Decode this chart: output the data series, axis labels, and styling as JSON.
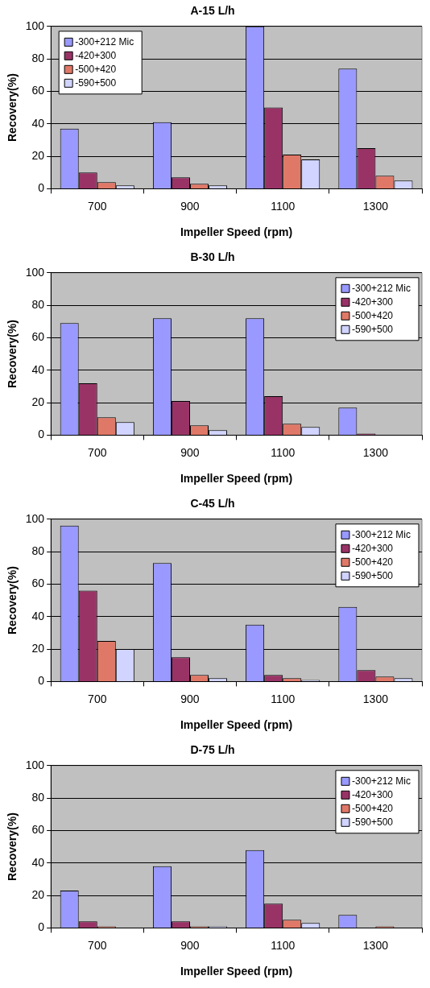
{
  "chart_data": [
    {
      "type": "bar",
      "title": "A-15 L/h",
      "xlabel": "Impeller Speed (rpm)",
      "ylabel": "Recovery(%)",
      "categories": [
        "700",
        "900",
        "1100",
        "1300"
      ],
      "ylim": [
        0,
        100
      ],
      "yticks": [
        0,
        20,
        40,
        60,
        80,
        100
      ],
      "grid": "y",
      "legend": "top left",
      "series": [
        {
          "name": "-300+212 Mic",
          "color": "#9999ff",
          "values": [
            37,
            41,
            100,
            74
          ]
        },
        {
          "name": "-420+300",
          "color": "#993366",
          "values": [
            10,
            7,
            50,
            25
          ]
        },
        {
          "name": "-500+420",
          "color": "#e07868",
          "values": [
            4,
            3,
            21,
            8
          ]
        },
        {
          "name": "-590+500",
          "color": "#d0d4ff",
          "values": [
            2,
            2,
            18,
            5
          ]
        }
      ]
    },
    {
      "type": "bar",
      "title": "B-30 L/h",
      "xlabel": "Impeller Speed (rpm)",
      "ylabel": "Recovery(%)",
      "categories": [
        "700",
        "900",
        "1100",
        "1300"
      ],
      "ylim": [
        0,
        100
      ],
      "yticks": [
        0,
        20,
        40,
        60,
        80,
        100
      ],
      "grid": "y",
      "legend": "top right",
      "series": [
        {
          "name": "-300+212 Mic",
          "color": "#9999ff",
          "values": [
            69,
            72,
            72,
            17
          ]
        },
        {
          "name": "-420+300",
          "color": "#993366",
          "values": [
            32,
            21,
            24,
            1
          ]
        },
        {
          "name": "-500+420",
          "color": "#e07868",
          "values": [
            11,
            6,
            7,
            0
          ]
        },
        {
          "name": "-590+500",
          "color": "#d0d4ff",
          "values": [
            8,
            3,
            5,
            0
          ]
        }
      ]
    },
    {
      "type": "bar",
      "title": "C-45 L/h",
      "xlabel": "Impeller Speed (rpm)",
      "ylabel": "Recovery(%)",
      "categories": [
        "700",
        "900",
        "1100",
        "1300"
      ],
      "ylim": [
        0,
        100
      ],
      "yticks": [
        0,
        20,
        40,
        60,
        80,
        100
      ],
      "grid": "y",
      "legend": "top right",
      "series": [
        {
          "name": "-300+212 Mic",
          "color": "#9999ff",
          "values": [
            96,
            73,
            35,
            46
          ]
        },
        {
          "name": "-420+300",
          "color": "#993366",
          "values": [
            56,
            15,
            4,
            7
          ]
        },
        {
          "name": "-500+420",
          "color": "#e07868",
          "values": [
            25,
            4,
            2,
            3
          ]
        },
        {
          "name": "-590+500",
          "color": "#d0d4ff",
          "values": [
            20,
            2,
            1,
            2
          ]
        }
      ]
    },
    {
      "type": "bar",
      "title": "D-75 L/h",
      "xlabel": "Impeller Speed (rpm)",
      "ylabel": "Recovery(%)",
      "categories": [
        "700",
        "900",
        "1100",
        "1300"
      ],
      "ylim": [
        0,
        100
      ],
      "yticks": [
        0,
        20,
        40,
        60,
        80,
        100
      ],
      "grid": "y",
      "legend": "top right",
      "series": [
        {
          "name": "-300+212 Mic",
          "color": "#9999ff",
          "values": [
            23,
            38,
            48,
            8
          ]
        },
        {
          "name": "-420+300",
          "color": "#993366",
          "values": [
            4,
            4,
            15,
            0
          ]
        },
        {
          "name": "-500+420",
          "color": "#e07868",
          "values": [
            1,
            1,
            5,
            1
          ]
        },
        {
          "name": "-590+500",
          "color": "#d0d4ff",
          "values": [
            0,
            1,
            3,
            0
          ]
        }
      ]
    }
  ]
}
